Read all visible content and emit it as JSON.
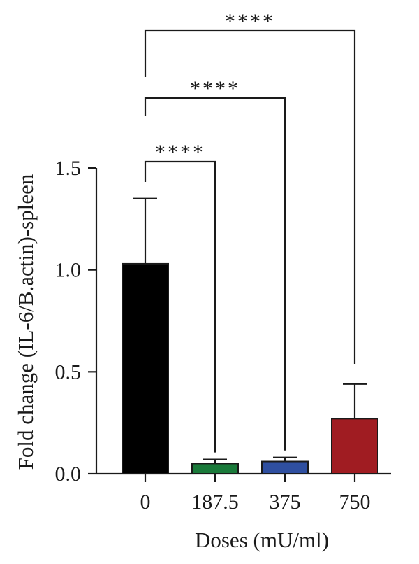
{
  "chart_data": {
    "type": "bar",
    "xlabel": "Doses (mU/ml)",
    "ylabel": "Fold change (IL-6/B.actin)-spleen",
    "ylim": [
      0,
      1.5
    ],
    "yticks": [
      "0.0",
      "0.5",
      "1.0",
      "1.5"
    ],
    "categories": [
      "0",
      "187.5",
      "375",
      "750"
    ],
    "values": [
      1.03,
      0.05,
      0.06,
      0.27
    ],
    "errors": [
      0.32,
      0.02,
      0.02,
      0.17
    ],
    "colors": [
      "#000000",
      "#1a7a3a",
      "#2f4fa0",
      "#a01c22"
    ],
    "significance": [
      {
        "from": "0",
        "to": "187.5",
        "label": "****"
      },
      {
        "from": "0",
        "to": "375",
        "label": "****"
      },
      {
        "from": "0",
        "to": "750",
        "label": "****"
      }
    ],
    "grid": false,
    "legend": "none"
  }
}
